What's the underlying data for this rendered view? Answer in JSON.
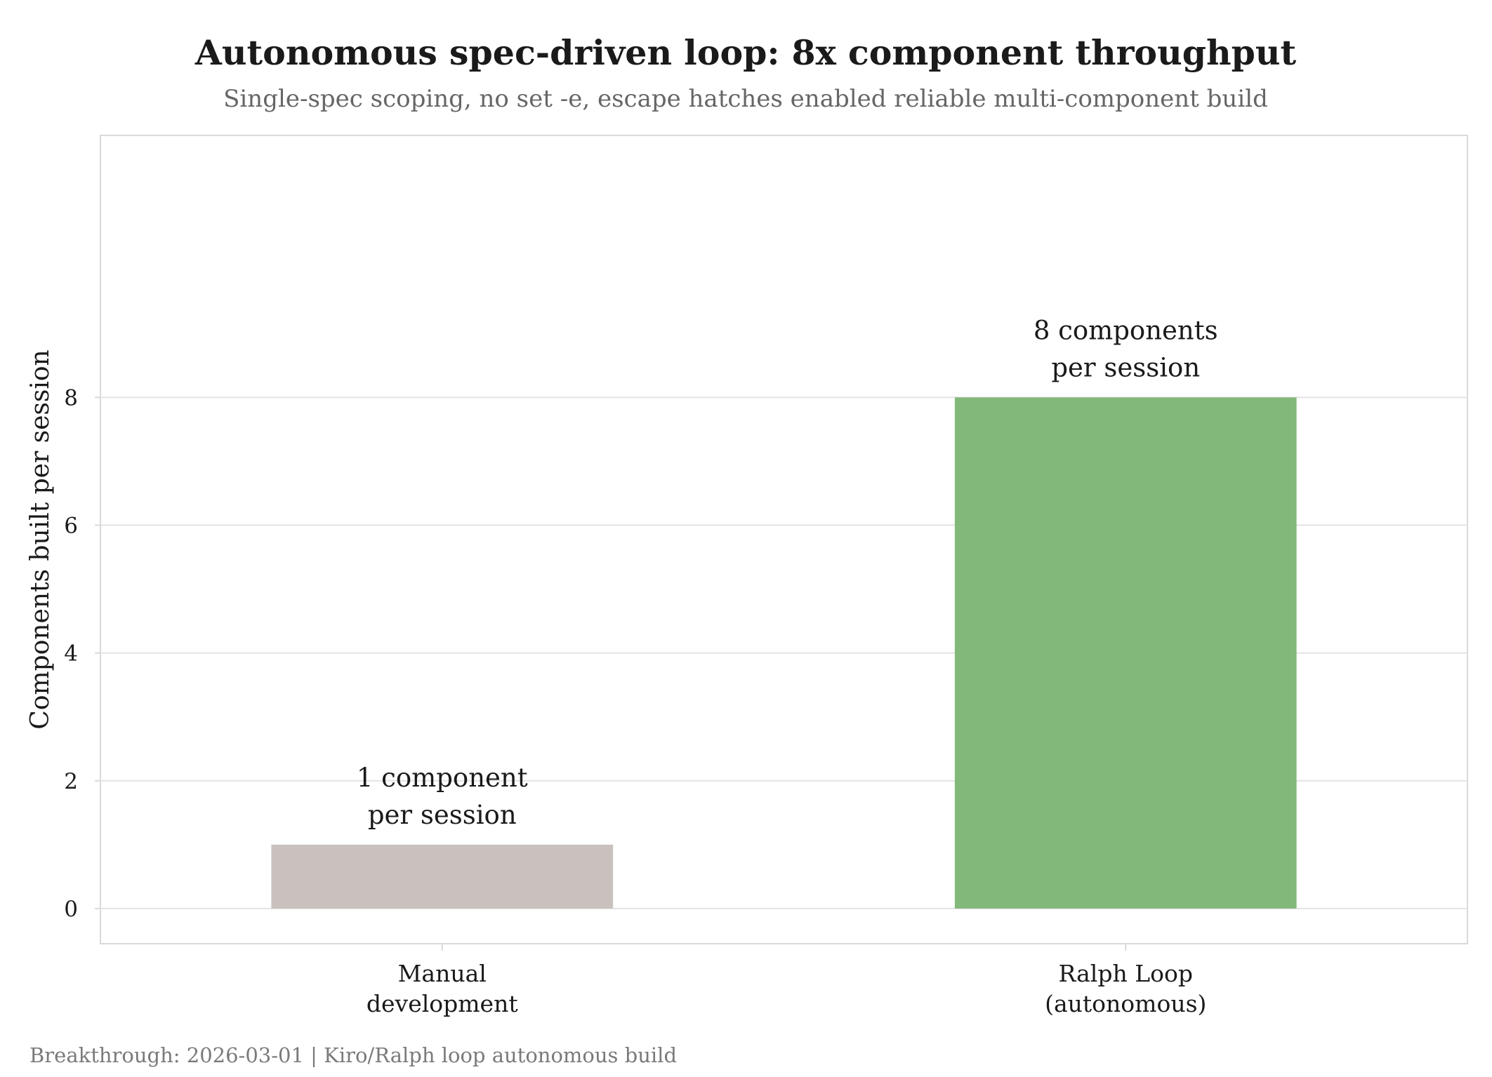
{
  "chart_data": {
    "type": "bar",
    "title": "Autonomous spec-driven loop: 8x component throughput",
    "subtitle": "Single-spec scoping, no set -e, escape hatches enabled reliable multi-component build",
    "xlabel": "",
    "ylabel": "Components built per session",
    "categories": [
      [
        "Manual",
        "development"
      ],
      [
        "Ralph Loop",
        "(autonomous)"
      ]
    ],
    "values": [
      1,
      8
    ],
    "data_labels": [
      [
        "1 component",
        "per session"
      ],
      [
        "8 components",
        "per session"
      ]
    ],
    "colors": [
      "#c9c1be",
      "#82b87a"
    ],
    "ylim": [
      -0.55,
      12.1
    ],
    "yticks": [
      0,
      2,
      4,
      6,
      8
    ],
    "grid": true,
    "legend": "none",
    "footer": "Breakthrough: 2026-03-01 | Kiro/Ralph loop autonomous build"
  }
}
